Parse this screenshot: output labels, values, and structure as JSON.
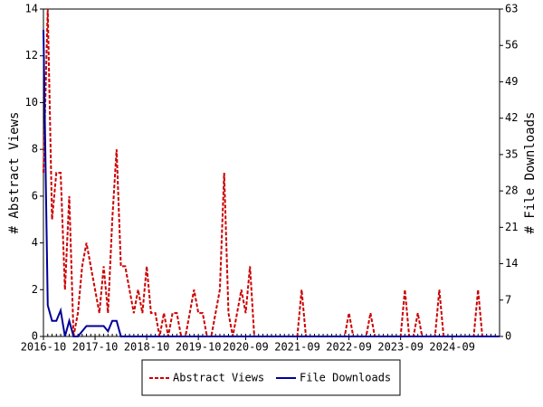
{
  "chart_data": {
    "type": "line",
    "x": [
      "2016-10",
      "2016-11",
      "2016-12",
      "2017-01",
      "2017-02",
      "2017-03",
      "2017-04",
      "2017-05",
      "2017-06",
      "2017-07",
      "2017-08",
      "2017-09",
      "2017-10",
      "2017-11",
      "2017-12",
      "2018-01",
      "2018-02",
      "2018-03",
      "2018-04",
      "2018-05",
      "2018-06",
      "2018-07",
      "2018-08",
      "2018-09",
      "2018-10",
      "2018-11",
      "2018-12",
      "2019-01",
      "2019-02",
      "2019-03",
      "2019-04",
      "2019-05",
      "2019-06",
      "2019-07",
      "2019-08",
      "2019-09",
      "2019-10",
      "2019-11",
      "2019-12",
      "2020-01",
      "2020-02",
      "2020-03",
      "2020-04",
      "2020-05",
      "2020-06",
      "2020-07",
      "2020-08",
      "2020-09",
      "2020-10",
      "2020-11",
      "2020-12",
      "2021-01",
      "2021-02",
      "2021-03",
      "2021-04",
      "2021-05",
      "2021-06",
      "2021-07",
      "2021-08",
      "2021-09",
      "2021-10",
      "2021-11",
      "2021-12",
      "2022-01",
      "2022-02",
      "2022-03",
      "2022-04",
      "2022-05",
      "2022-06",
      "2022-07",
      "2022-08",
      "2022-09",
      "2022-10",
      "2022-11",
      "2022-12",
      "2023-01",
      "2023-02",
      "2023-03",
      "2023-04",
      "2023-05",
      "2023-06",
      "2023-07",
      "2023-08",
      "2023-09",
      "2023-10",
      "2023-11",
      "2023-12",
      "2024-01",
      "2024-02",
      "2024-03",
      "2024-04",
      "2024-05",
      "2024-06",
      "2024-07",
      "2024-08",
      "2024-09",
      "2024-10",
      "2024-11",
      "2024-12",
      "2025-01",
      "2025-02",
      "2025-03",
      "2025-04",
      "2025-05",
      "2025-06",
      "2025-07",
      "2025-08"
    ],
    "xticks": [
      "2016-10",
      "2017-10",
      "2018-10",
      "2019-10",
      "2020-09",
      "2021-09",
      "2022-09",
      "2023-09",
      "2024-09"
    ],
    "ylabel": "# Abstract Views",
    "y2label": "# File Downloads",
    "ylim": [
      0,
      14
    ],
    "yticks": [
      0,
      2,
      4,
      6,
      8,
      10,
      12,
      14
    ],
    "y2lim": [
      0,
      63
    ],
    "y2ticks": [
      0,
      7,
      14,
      21,
      28,
      35,
      42,
      49,
      56,
      63
    ],
    "legend": "bottom",
    "series": [
      {
        "name": "Abstract Views",
        "color": "#cc0000",
        "dash": true,
        "axis": "y",
        "values": [
          7,
          14,
          5,
          7,
          7,
          2,
          6,
          0,
          1,
          3,
          4,
          3,
          2,
          1,
          3,
          1,
          5,
          8,
          3,
          3,
          2,
          1,
          2,
          1,
          3,
          1,
          1,
          0,
          1,
          0,
          1,
          1,
          0,
          0,
          1,
          2,
          1,
          1,
          0,
          0,
          1,
          2,
          7,
          1,
          0,
          1,
          2,
          1,
          3,
          0,
          0,
          0,
          0,
          0,
          0,
          0,
          0,
          0,
          0,
          0,
          2,
          0,
          0,
          0,
          0,
          0,
          0,
          0,
          0,
          0,
          0,
          1,
          0,
          0,
          0,
          0,
          1,
          0,
          0,
          0,
          0,
          0,
          0,
          0,
          2,
          0,
          0,
          1,
          0,
          0,
          0,
          0,
          2,
          0,
          0,
          0,
          0,
          0,
          0,
          0,
          0,
          2,
          0,
          0,
          0,
          0,
          0
        ]
      },
      {
        "name": "File Downloads",
        "color": "#000099",
        "dash": false,
        "axis": "y2",
        "values": [
          59,
          6,
          3,
          3,
          5,
          0,
          3,
          0,
          0,
          1,
          2,
          2,
          2,
          2,
          2,
          1,
          3,
          3,
          0,
          0,
          0,
          0,
          0,
          0,
          0,
          0,
          0,
          0,
          0,
          0,
          0,
          0,
          0,
          0,
          0,
          0,
          0,
          0,
          0,
          0,
          0,
          0,
          0,
          0,
          0,
          0,
          0,
          0,
          0,
          0,
          0,
          0,
          0,
          0,
          0,
          0,
          0,
          0,
          0,
          0,
          0,
          0,
          0,
          0,
          0,
          0,
          0,
          0,
          0,
          0,
          0,
          0,
          0,
          0,
          0,
          0,
          0,
          0,
          0,
          0,
          0,
          0,
          0,
          0,
          0,
          0,
          0,
          0,
          0,
          0,
          0,
          0,
          0,
          0,
          0,
          0,
          0,
          0,
          0,
          0,
          0,
          0,
          0,
          0,
          0,
          0,
          0
        ]
      }
    ]
  }
}
